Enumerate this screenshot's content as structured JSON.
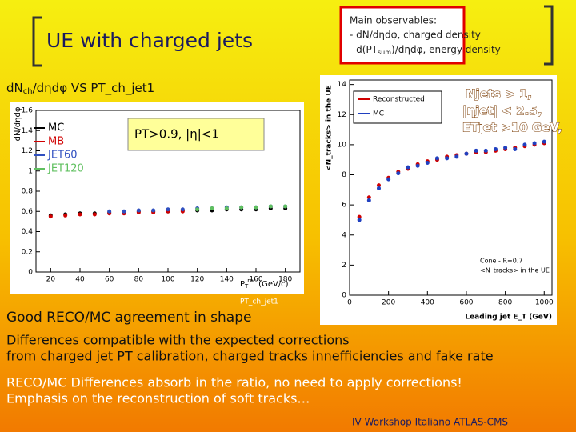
{
  "title": "UE with charged jets",
  "observables": {
    "heading": "Main observables:",
    "line1": "- dN/dηdφ, charged density",
    "line2_a": "- d(PT",
    "line2_sub": "sum",
    "line2_b": ")/dηdφ, energy density"
  },
  "left_caption": {
    "a": "dN",
    "sub": "ch",
    "b": "/dηdφ VS PT_ch_jet1"
  },
  "cuts": {
    "line1": "Njets > 1,",
    "line2": "|ηjet| < 2.5,",
    "line3": "ETjet >10 GeV,"
  },
  "left_plot": {
    "y_label": "dN/dηdφ",
    "x_label": {
      "main": "P",
      "sub": "T",
      "sup": "rec",
      "unit": "(GeV/c)"
    },
    "annotation": "PT>0.9, |η|<1",
    "below_label": "PT_ch_jet1",
    "xlim": [
      10,
      190
    ],
    "ylim": [
      0,
      1.6
    ],
    "xticks": [
      20,
      40,
      60,
      80,
      100,
      120,
      140,
      160,
      180
    ],
    "yticks": [
      0,
      0.2,
      0.4,
      0.6,
      0.8,
      1,
      1.2,
      1.4,
      1.6
    ],
    "x": [
      20,
      30,
      40,
      50,
      60,
      70,
      80,
      90,
      100,
      110,
      120,
      130,
      140,
      150,
      160,
      170,
      180
    ],
    "series": [
      {
        "name": "MC",
        "color": "#000000",
        "values": [
          0.56,
          0.57,
          0.58,
          0.58,
          0.59,
          0.59,
          0.6,
          0.6,
          0.6,
          0.61,
          0.61,
          0.61,
          0.62,
          0.62,
          0.62,
          0.63,
          0.63
        ]
      },
      {
        "name": "MB",
        "color": "#d00000",
        "values": [
          0.55,
          0.56,
          0.57,
          0.57,
          0.58,
          0.58,
          0.59,
          0.59,
          0.6,
          0.6,
          null,
          null,
          null,
          null,
          null,
          null,
          null
        ]
      },
      {
        "name": "JET60",
        "color": "#3050c0",
        "values": [
          null,
          null,
          null,
          null,
          0.6,
          0.6,
          0.61,
          0.61,
          0.62,
          0.62,
          0.63,
          0.63,
          0.64,
          0.64,
          0.64,
          0.65,
          0.65
        ]
      },
      {
        "name": "JET120",
        "color": "#60c060",
        "values": [
          null,
          null,
          null,
          null,
          null,
          null,
          null,
          null,
          null,
          null,
          0.62,
          0.63,
          0.63,
          0.64,
          0.64,
          0.65,
          0.65
        ]
      }
    ]
  },
  "right_plot": {
    "y_label": "<N_tracks> in the UE",
    "x_label": "Leading jet E_T (GeV)",
    "note1": "Cone - R=0.7",
    "note2": "<N_tracks> in the UE",
    "xlim": [
      0,
      1040
    ],
    "ylim": [
      0,
      14.3
    ],
    "xticks": [
      0,
      200,
      400,
      600,
      800,
      1000
    ],
    "yticks": [
      0,
      2,
      4,
      6,
      8,
      10,
      12,
      14
    ],
    "x": [
      50,
      100,
      150,
      200,
      250,
      300,
      350,
      400,
      450,
      500,
      550,
      600,
      650,
      700,
      750,
      800,
      850,
      900,
      950,
      1000
    ],
    "series": [
      {
        "name": "Reconstructed",
        "color": "#d00000",
        "values": [
          5.2,
          6.5,
          7.3,
          7.8,
          8.2,
          8.4,
          8.7,
          8.9,
          9.0,
          9.2,
          9.3,
          9.4,
          9.5,
          9.5,
          9.6,
          9.7,
          9.8,
          9.9,
          10.0,
          10.1
        ]
      },
      {
        "name": "MC",
        "color": "#2040c0",
        "values": [
          5.0,
          6.3,
          7.1,
          7.7,
          8.1,
          8.5,
          8.6,
          8.8,
          9.1,
          9.1,
          9.2,
          9.4,
          9.6,
          9.6,
          9.7,
          9.8,
          9.7,
          10.0,
          10.1,
          10.2
        ]
      }
    ]
  },
  "body": {
    "agreement": "Good RECO/MC  agreement in shape",
    "diff1": "Differences compatible with the expected corrections",
    "diff2": "from charged jet PT calibration, charged tracks innefficiencies and fake rate",
    "reco1": "RECO/MC Differences absorb in the ratio, no need to apply corrections!",
    "reco2": "Emphasis on the reconstruction of soft tracks…"
  },
  "footer": "IV Workshop Italiano ATLAS-CMS"
}
